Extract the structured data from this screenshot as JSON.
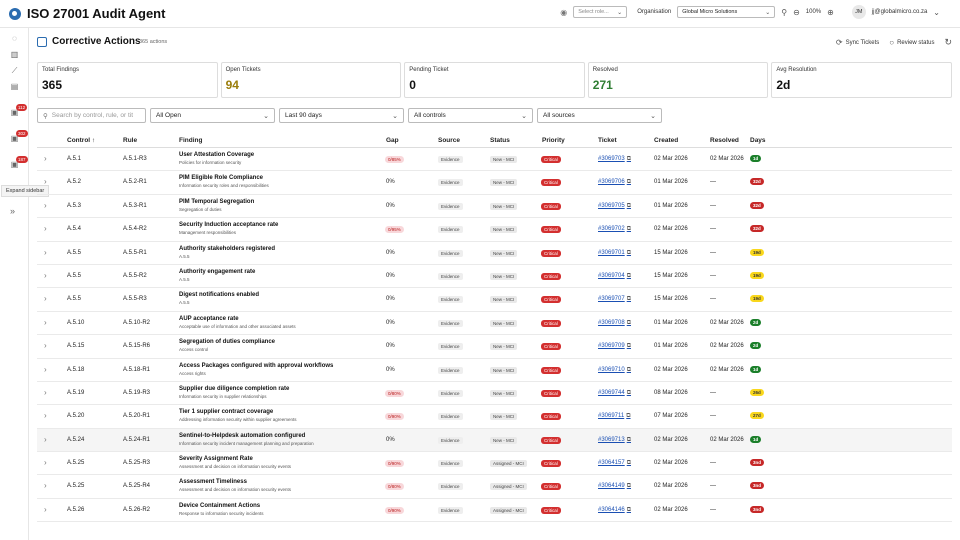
{
  "app": {
    "title": "ISO 27001 Audit Agent"
  },
  "topbar": {
    "role_placeholder": "Select role...",
    "org_label": "Organisation",
    "org_value": "Global Micro Solutions",
    "zoom": "100%",
    "avatar_initials": "JM",
    "user_email": "jj@globalmicro.co.za"
  },
  "sidebar": {
    "badges": [
      "112",
      "302",
      "187"
    ],
    "tooltip": "Expand sidebar"
  },
  "header": {
    "title": "Corrective Actions",
    "count": "365 actions",
    "sync_label": "Sync Tickets",
    "review_label": "Review status"
  },
  "stats": [
    {
      "label": "Total Findings",
      "value": "365",
      "color": "#111111"
    },
    {
      "label": "Open Tickets",
      "value": "94",
      "color": "#9a7d0a"
    },
    {
      "label": "Pending Ticket",
      "value": "0",
      "color": "#111111"
    },
    {
      "label": "Resolved",
      "value": "271",
      "color": "#2e7d32"
    },
    {
      "label": "Avg Resolution",
      "value": "2d",
      "color": "#111111"
    }
  ],
  "filters": {
    "search_placeholder": "Search by control, rule, or tit",
    "status": "All Open",
    "period": "Last 90 days",
    "controls": "All controls",
    "sources": "All sources"
  },
  "table": {
    "headers": [
      "Control ↑",
      "Rule",
      "Finding",
      "Gap",
      "Source",
      "Status",
      "Priority",
      "Ticket",
      "Created",
      "Resolved",
      "Days"
    ],
    "rows": [
      {
        "control": "A.5.1",
        "rule": "A.5.1-R3",
        "title": "User Attestation Coverage",
        "sub": "Policies for information security",
        "gap": "0/85%",
        "gap_pill": true,
        "source": "Evidence",
        "status": "New - MCI",
        "priority": "Critical",
        "ticket": "#3069703",
        "created": "02 Mar 2026",
        "resolved": "02 Mar 2026",
        "days": "1d",
        "days_color": "#1b7f2a",
        "days_text": "#ffffff"
      },
      {
        "control": "A.5.2",
        "rule": "A.5.2-R1",
        "title": "PIM Eligible Role Compliance",
        "sub": "Information security roles and responsibilities",
        "gap": "0%",
        "gap_pill": false,
        "source": "Evidence",
        "status": "New - MCI",
        "priority": "Critical",
        "ticket": "#3069706",
        "created": "01 Mar 2026",
        "resolved": "—",
        "days": "32d",
        "days_color": "#c62828",
        "days_text": "#ffffff"
      },
      {
        "control": "A.5.3",
        "rule": "A.5.3-R1",
        "title": "PIM Temporal Segregation",
        "sub": "Segregation of duties",
        "gap": "0%",
        "gap_pill": false,
        "source": "Evidence",
        "status": "New - MCI",
        "priority": "Critical",
        "ticket": "#3069705",
        "created": "01 Mar 2026",
        "resolved": "—",
        "days": "32d",
        "days_color": "#c62828",
        "days_text": "#ffffff"
      },
      {
        "control": "A.5.4",
        "rule": "A.5.4-R2",
        "title": "Security Induction acceptance rate",
        "sub": "Management responsibilities",
        "gap": "0/95%",
        "gap_pill": true,
        "source": "Evidence",
        "status": "New - MCI",
        "priority": "Critical",
        "ticket": "#3069702",
        "created": "02 Mar 2026",
        "resolved": "—",
        "days": "32d",
        "days_color": "#c62828",
        "days_text": "#ffffff"
      },
      {
        "control": "A.5.5",
        "rule": "A.5.5-R1",
        "title": "Authority stakeholders registered",
        "sub": "A.5.5",
        "gap": "0%",
        "gap_pill": false,
        "source": "Evidence",
        "status": "New - MCI",
        "priority": "Critical",
        "ticket": "#3069701",
        "created": "15 Mar 2026",
        "resolved": "—",
        "days": "19d",
        "days_color": "#f9d71c",
        "days_text": "#333333"
      },
      {
        "control": "A.5.5",
        "rule": "A.5.5-R2",
        "title": "Authority engagement rate",
        "sub": "A.5.5",
        "gap": "0%",
        "gap_pill": false,
        "source": "Evidence",
        "status": "New - MCI",
        "priority": "Critical",
        "ticket": "#3069704",
        "created": "15 Mar 2026",
        "resolved": "—",
        "days": "19d",
        "days_color": "#f9d71c",
        "days_text": "#333333"
      },
      {
        "control": "A.5.5",
        "rule": "A.5.5-R3",
        "title": "Digest notifications enabled",
        "sub": "A.5.5",
        "gap": "0%",
        "gap_pill": false,
        "source": "Evidence",
        "status": "New - MCI",
        "priority": "Critical",
        "ticket": "#3069707",
        "created": "15 Mar 2026",
        "resolved": "—",
        "days": "19d",
        "days_color": "#f9d71c",
        "days_text": "#333333"
      },
      {
        "control": "A.5.10",
        "rule": "A.5.10-R2",
        "title": "AUP acceptance rate",
        "sub": "Acceptable use of information and other associated assets",
        "gap": "0%",
        "gap_pill": false,
        "source": "Evidence",
        "status": "New - MCI",
        "priority": "Critical",
        "ticket": "#3069708",
        "created": "01 Mar 2026",
        "resolved": "02 Mar 2026",
        "days": "2d",
        "days_color": "#1b7f2a",
        "days_text": "#ffffff"
      },
      {
        "control": "A.5.15",
        "rule": "A.5.15-R6",
        "title": "Segregation of duties compliance",
        "sub": "Access control",
        "gap": "0%",
        "gap_pill": false,
        "source": "Evidence",
        "status": "New - MCI",
        "priority": "Critical",
        "ticket": "#3069709",
        "created": "01 Mar 2026",
        "resolved": "02 Mar 2026",
        "days": "2d",
        "days_color": "#1b7f2a",
        "days_text": "#ffffff"
      },
      {
        "control": "A.5.18",
        "rule": "A.5.18-R1",
        "title": "Access Packages configured with approval workflows",
        "sub": "Access rights",
        "gap": "0%",
        "gap_pill": false,
        "source": "Evidence",
        "status": "New - MCI",
        "priority": "Critical",
        "ticket": "#3069710",
        "created": "02 Mar 2026",
        "resolved": "02 Mar 2026",
        "days": "1d",
        "days_color": "#1b7f2a",
        "days_text": "#ffffff"
      },
      {
        "control": "A.5.19",
        "rule": "A.5.19-R3",
        "title": "Supplier due diligence completion rate",
        "sub": "Information security in supplier relationships",
        "gap": "0/80%",
        "gap_pill": true,
        "source": "Evidence",
        "status": "New - MCI",
        "priority": "Critical",
        "ticket": "#3069744",
        "created": "08 Mar 2026",
        "resolved": "—",
        "days": "26d",
        "days_color": "#f9d71c",
        "days_text": "#333333"
      },
      {
        "control": "A.5.20",
        "rule": "A.5.20-R1",
        "title": "Tier 1 supplier contract coverage",
        "sub": "Addressing information security within supplier agreements",
        "gap": "0/90%",
        "gap_pill": true,
        "source": "Evidence",
        "status": "New - MCI",
        "priority": "Critical",
        "ticket": "#3069711",
        "created": "07 Mar 2026",
        "resolved": "—",
        "days": "27d",
        "days_color": "#f9d71c",
        "days_text": "#333333"
      },
      {
        "control": "A.5.24",
        "rule": "A.5.24-R1",
        "title": "Sentinel-to-Helpdesk automation configured",
        "sub": "Information security incident management planning and preparation",
        "gap": "0%",
        "gap_pill": false,
        "source": "Evidence",
        "status": "New - MCI",
        "priority": "Critical",
        "ticket": "#3069713",
        "created": "02 Mar 2026",
        "resolved": "02 Mar 2026",
        "days": "1d",
        "days_color": "#1b7f2a",
        "days_text": "#ffffff",
        "highlight": true
      },
      {
        "control": "A.5.25",
        "rule": "A.5.25-R3",
        "title": "Severity Assignment Rate",
        "sub": "Assessment and decision on information security events",
        "gap": "0/90%",
        "gap_pill": true,
        "source": "Evidence",
        "status": "Assigned - MCI",
        "priority": "Critical",
        "ticket": "#3064157",
        "created": "02 Mar 2026",
        "resolved": "—",
        "days": "3nd",
        "days_color": "#c62828",
        "days_text": "#ffffff"
      },
      {
        "control": "A.5.25",
        "rule": "A.5.25-R4",
        "title": "Assessment Timeliness",
        "sub": "Assessment and decision on information security events",
        "gap": "0/80%",
        "gap_pill": true,
        "source": "Evidence",
        "status": "Assigned - MCI",
        "priority": "Critical",
        "ticket": "#3064149",
        "created": "02 Mar 2026",
        "resolved": "—",
        "days": "3nd",
        "days_color": "#c62828",
        "days_text": "#ffffff"
      },
      {
        "control": "A.5.26",
        "rule": "A.5.26-R2",
        "title": "Device Containment Actions",
        "sub": "Response to information security incidents",
        "gap": "0/90%",
        "gap_pill": true,
        "source": "Evidence",
        "status": "Assigned - MCI",
        "priority": "Critical",
        "ticket": "#3064146",
        "created": "02 Mar 2026",
        "resolved": "—",
        "days": "3nd",
        "days_color": "#c62828",
        "days_text": "#ffffff"
      }
    ]
  }
}
